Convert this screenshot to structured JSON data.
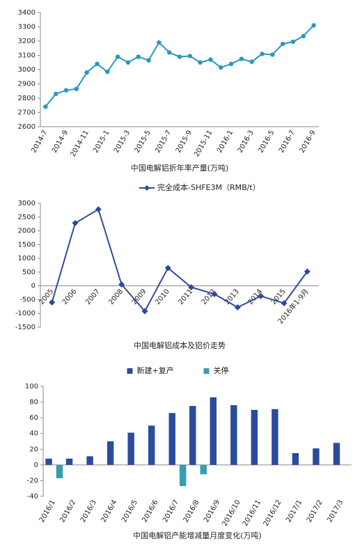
{
  "chart_data": [
    {
      "type": "line",
      "title": "中国电解铝折年率产量(万吨)",
      "color": "#2a97c0",
      "categories": [
        "2014-7",
        null,
        "2014-9",
        null,
        "2014-11",
        null,
        "2015-1",
        null,
        "2015-3",
        null,
        "2015-5",
        null,
        "2015-7",
        null,
        "2015-9",
        null,
        "2015-11",
        null,
        "2016-1",
        null,
        "2016-3",
        null,
        "2016-5",
        null,
        "2016-7",
        null,
        "2016-9"
      ],
      "values": [
        2740,
        2830,
        2855,
        2865,
        2980,
        3040,
        2985,
        3090,
        3050,
        3090,
        3065,
        3190,
        3120,
        3090,
        3095,
        3050,
        3070,
        3015,
        3040,
        3075,
        3055,
        3110,
        3105,
        3180,
        3195,
        3235,
        3310
      ],
      "ylim": [
        2600,
        3400
      ],
      "yticks": [
        2600,
        2700,
        2800,
        2900,
        3000,
        3100,
        3200,
        3300,
        3400
      ],
      "grid": false
    },
    {
      "type": "line",
      "title": "中国电解铝成本及铝价走势",
      "categories": [
        "2005",
        "2006",
        "2007",
        "2008",
        "2009",
        "2010",
        "2011",
        "2012",
        "2013",
        "2014",
        "2015",
        "2016年1-9月"
      ],
      "series": [
        {
          "name": "完全成本-SHFE3M（RMB/t）",
          "color": "#2e4b9b",
          "values": [
            -600,
            2280,
            2780,
            50,
            -920,
            650,
            -50,
            -300,
            -780,
            -370,
            -630,
            520
          ]
        }
      ],
      "ylim": [
        -1500,
        3000
      ],
      "yticks": [
        -1500,
        -1000,
        -500,
        0,
        500,
        1000,
        1500,
        2000,
        2500,
        3000
      ],
      "grid": false,
      "legend": "top"
    },
    {
      "type": "bar",
      "title": "中国电解铝产能增减量月度变化(万吨)",
      "categories": [
        "2016/1",
        "2016/2",
        "2016/3",
        "2016/4",
        "2016/5",
        "2016/6",
        "2016/7",
        "2016/8",
        "2016/9",
        "2016/10",
        "2016/11",
        "2016/12",
        "2017/1",
        "2017/2",
        "2017/3"
      ],
      "series": [
        {
          "name": "新建+复产",
          "color": "#2b4c9c",
          "values": [
            8,
            8,
            11,
            30,
            41,
            50,
            66,
            75,
            86,
            76,
            70,
            71,
            15,
            21,
            28
          ]
        },
        {
          "name": "关停",
          "color": "#3a9cae",
          "values": [
            -17,
            null,
            null,
            null,
            null,
            null,
            -27,
            -12,
            null,
            null,
            null,
            null,
            null,
            null,
            null
          ]
        }
      ],
      "ylim": [
        -40,
        100
      ],
      "yticks": [
        -40,
        -20,
        0,
        20,
        40,
        60,
        80,
        100
      ],
      "grid": false,
      "legend": "top"
    }
  ]
}
